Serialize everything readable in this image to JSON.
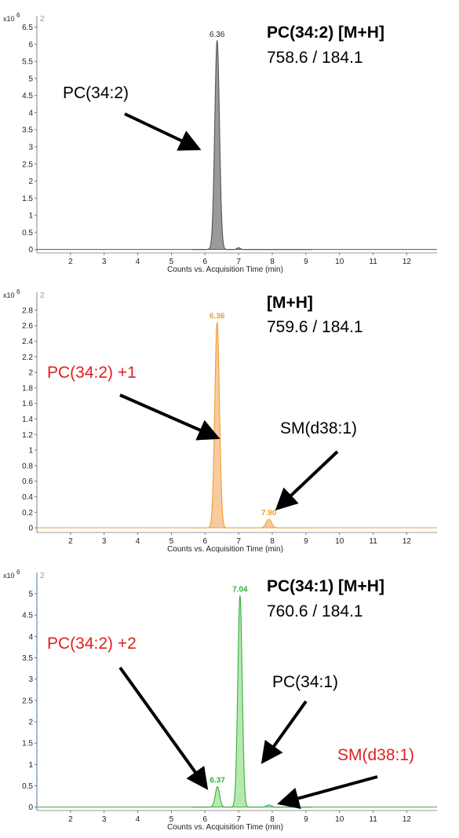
{
  "chart_data": [
    {
      "type": "line",
      "panel_number": "2",
      "y_scale_label": "x10",
      "y_scale_exponent": "6",
      "xlabel": "Counts vs. Acquisition Time (min)",
      "xlim": [
        1.0,
        12.9
      ],
      "ylim": [
        -0.1,
        6.65
      ],
      "x_ticks": [
        2,
        3,
        4,
        5,
        6,
        7,
        8,
        9,
        10,
        11,
        12
      ],
      "y_ticks": [
        0,
        0.5,
        1,
        1.5,
        2,
        2.5,
        3,
        3.5,
        4,
        4.5,
        5,
        5.5,
        6,
        6.5
      ],
      "y_tick_labels": [
        "0",
        "0.5",
        "1",
        "1.5",
        "2",
        "2.5",
        "3",
        "3.5",
        "4",
        "4.5",
        "5",
        "5.5",
        "6",
        "6.5"
      ],
      "color": "#555555",
      "fill": "#9a9a9a",
      "baseline": [
        5.6,
        9.2
      ],
      "peaks": [
        {
          "rt": 6.36,
          "height": 6.1,
          "width": 0.07,
          "label": "6.36"
        },
        {
          "rt": 7.0,
          "height": 0.05,
          "width": 0.05,
          "label": ""
        }
      ],
      "title": "PC(34:2) [M+H]",
      "subtitle": "758.6 / 184.1",
      "annotations": [
        {
          "text": "PC(34:2)",
          "color": "#000000"
        }
      ]
    },
    {
      "type": "line",
      "panel_number": "2",
      "y_scale_label": "x10",
      "y_scale_exponent": "6",
      "xlabel": "Counts vs. Acquisition Time (min)",
      "xlim": [
        1.0,
        12.9
      ],
      "ylim": [
        -0.06,
        2.95
      ],
      "x_ticks": [
        2,
        3,
        4,
        5,
        6,
        7,
        8,
        9,
        10,
        11,
        12
      ],
      "y_ticks": [
        0,
        0.2,
        0.4,
        0.6,
        0.8,
        1,
        1.2,
        1.4,
        1.6,
        1.8,
        2,
        2.2,
        2.4,
        2.6,
        2.8
      ],
      "y_tick_labels": [
        "0",
        "0.2",
        "0.4",
        "0.6",
        "0.8",
        "1",
        "1.2",
        "1.4",
        "1.6",
        "1.8",
        "2",
        "2.2",
        "2.4",
        "2.6",
        "2.8"
      ],
      "color": "#f0a030",
      "fill": "#f7caa0",
      "baseline": [
        5.6,
        9.2
      ],
      "peaks": [
        {
          "rt": 6.36,
          "height": 2.64,
          "width": 0.07,
          "label": "6.36"
        },
        {
          "rt": 7.9,
          "height": 0.11,
          "width": 0.08,
          "label": "7.90"
        }
      ],
      "title": "[M+H]",
      "subtitle": "759.6 / 184.1",
      "annotations": [
        {
          "text": "PC(34:2) +1",
          "color": "#e0201e"
        },
        {
          "text": "SM(d38:1)",
          "color": "#000000"
        }
      ]
    },
    {
      "type": "line",
      "panel_number": "2",
      "y_scale_label": "x10",
      "y_scale_exponent": "6",
      "xlabel": "Counts vs. Acquisition Time (min)",
      "xlim": [
        1.0,
        12.9
      ],
      "ylim": [
        -0.08,
        5.35
      ],
      "x_ticks": [
        2,
        3,
        4,
        5,
        6,
        7,
        8,
        9,
        10,
        11,
        12
      ],
      "y_ticks": [
        0,
        0.5,
        1,
        1.5,
        2,
        2.5,
        3,
        3.5,
        4,
        4.5,
        5
      ],
      "y_tick_labels": [
        "0",
        "0.5",
        "1",
        "1.5",
        "2",
        "2.5",
        "3",
        "3.5",
        "4",
        "4.5",
        "5"
      ],
      "color": "#33b040",
      "fill": "#b8e8b0",
      "baseline": [
        5.6,
        9.2
      ],
      "peaks": [
        {
          "rt": 6.37,
          "height": 0.48,
          "width": 0.065,
          "label": "6.37"
        },
        {
          "rt": 7.04,
          "height": 4.95,
          "width": 0.065,
          "label": "7.04"
        },
        {
          "rt": 7.9,
          "height": 0.05,
          "width": 0.07,
          "label": ""
        }
      ],
      "title": "PC(34:1) [M+H]",
      "subtitle": "760.6 / 184.1",
      "annotations": [
        {
          "text": "PC(34:2) +2",
          "color": "#e0201e"
        },
        {
          "text": "PC(34:1)",
          "color": "#000000"
        },
        {
          "text": "SM(d38:1)",
          "color": "#e0201e"
        }
      ]
    }
  ]
}
